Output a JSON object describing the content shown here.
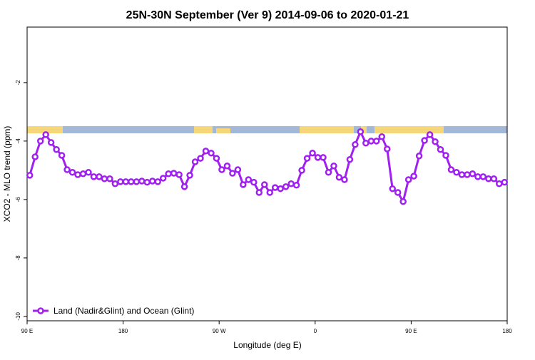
{
  "chart_data": {
    "type": "line",
    "title": "25N-30N September (Ver 9)   2014-09-06 to 2020-01-21",
    "xlabel": "Longitude (deg E)",
    "ylabel": "XCO2 - MLO trend (ppm)",
    "xlim": [
      90,
      540
    ],
    "ylim": [
      -10.15,
      -0.1
    ],
    "xticks": [
      {
        "value": 90,
        "label": "90 E"
      },
      180,
      {
        "value": 270,
        "label": "90 W"
      },
      {
        "value": 360,
        "label": "0"
      },
      {
        "value": 450,
        "label": "90 E"
      },
      {
        "value": 540,
        "label": "180"
      }
    ],
    "yticks": [
      -2,
      -4,
      -6,
      -8,
      -10
    ],
    "legend": "bottom-left",
    "x": [
      92.5,
      97.5,
      102.5,
      107.5,
      112.5,
      117.5,
      122.5,
      127.5,
      132.5,
      137.5,
      142.5,
      147.5,
      152.5,
      157.5,
      162.5,
      167.5,
      172.5,
      177.5,
      182.5,
      187.5,
      192.5,
      197.5,
      202.5,
      207.5,
      212.5,
      217.5,
      222.5,
      227.5,
      232.5,
      237.5,
      242.5,
      247.5,
      252.5,
      257.5,
      262.5,
      267.5,
      272.5,
      277.5,
      282.5,
      287.5,
      292.5,
      297.5,
      302.5,
      307.5,
      312.5,
      317.5,
      322.5,
      327.5,
      332.5,
      337.5,
      342.5,
      347.5,
      352.5,
      357.5,
      362.5,
      367.5,
      372.5,
      377.5,
      382.5,
      387.5,
      392.5,
      397.5,
      402.5,
      407.5,
      412.5,
      417.5,
      422.5,
      427.5,
      432.5,
      437.5,
      442.5,
      447.5,
      452.5,
      457.5,
      462.5,
      467.5,
      472.5,
      477.5,
      482.5,
      487.5,
      492.5,
      497.5,
      502.5,
      507.5,
      512.5,
      517.5,
      522.5,
      527.5,
      532.5,
      537.5
    ],
    "series": [
      {
        "name": "Land (Nadir&Glint) and Ocean (Glint)",
        "color": "#a020f0",
        "values": [
          -5.17,
          -4.54,
          -4.0,
          -3.78,
          -4.05,
          -4.29,
          -4.49,
          -4.98,
          -5.07,
          -5.15,
          -5.12,
          -5.07,
          -5.22,
          -5.22,
          -5.29,
          -5.29,
          -5.46,
          -5.39,
          -5.39,
          -5.39,
          -5.39,
          -5.37,
          -5.41,
          -5.37,
          -5.39,
          -5.27,
          -5.12,
          -5.1,
          -5.15,
          -5.56,
          -5.17,
          -4.71,
          -4.59,
          -4.34,
          -4.41,
          -4.59,
          -4.98,
          -4.85,
          -5.1,
          -4.98,
          -5.49,
          -5.32,
          -5.41,
          -5.76,
          -5.49,
          -5.76,
          -5.59,
          -5.63,
          -5.56,
          -5.46,
          -5.51,
          -5.0,
          -4.59,
          -4.41,
          -4.56,
          -4.56,
          -5.07,
          -4.85,
          -5.24,
          -5.32,
          -4.63,
          -4.12,
          -3.68,
          -4.07,
          -4.0,
          -4.0,
          -3.85,
          -4.27,
          -5.63,
          -5.76,
          -6.07,
          -5.32,
          -5.2,
          -4.51,
          -3.98,
          -3.78,
          -4.02,
          -4.29,
          -4.49,
          -4.98,
          -5.07,
          -5.15,
          -5.15,
          -5.12,
          -5.22,
          -5.22,
          -5.29,
          -5.29,
          -5.46,
          -5.41
        ]
      }
    ]
  }
}
